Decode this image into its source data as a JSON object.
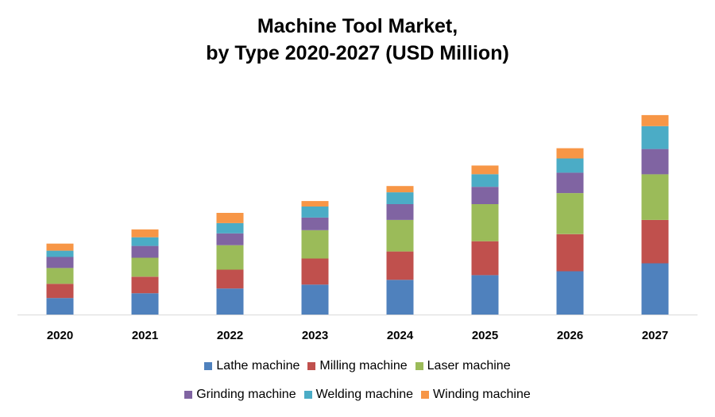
{
  "chart_data": {
    "type": "bar",
    "stacked": true,
    "title_line1": "Machine Tool Market,",
    "title_line2": "by Type 2020-2027 (USD Million)",
    "xlabel": "",
    "ylabel": "",
    "categories": [
      "2020",
      "2021",
      "2022",
      "2023",
      "2024",
      "2025",
      "2026",
      "2027"
    ],
    "ylim": [
      0,
      270
    ],
    "grid": false,
    "legend_position": "bottom",
    "series": [
      {
        "name": "Lathe machine",
        "color": "#4f81bd",
        "values": [
          21,
          27,
          33,
          38,
          44,
          50,
          55,
          65
        ]
      },
      {
        "name": "Milling machine",
        "color": "#c0504d",
        "values": [
          18,
          21,
          24,
          33,
          36,
          43,
          47,
          55
        ]
      },
      {
        "name": "Laser machine",
        "color": "#9bbb59",
        "values": [
          20,
          24,
          31,
          36,
          40,
          47,
          52,
          58
        ]
      },
      {
        "name": "Grinding machine",
        "color": "#8064a2",
        "values": [
          14,
          15,
          15,
          16,
          20,
          22,
          26,
          32
        ]
      },
      {
        "name": "Welding machine",
        "color": "#4bacc6",
        "values": [
          8,
          11,
          13,
          14,
          15,
          16,
          18,
          29
        ]
      },
      {
        "name": "Winding machine",
        "color": "#f79646",
        "values": [
          9,
          10,
          13,
          7,
          8,
          11,
          13,
          14
        ]
      }
    ]
  }
}
